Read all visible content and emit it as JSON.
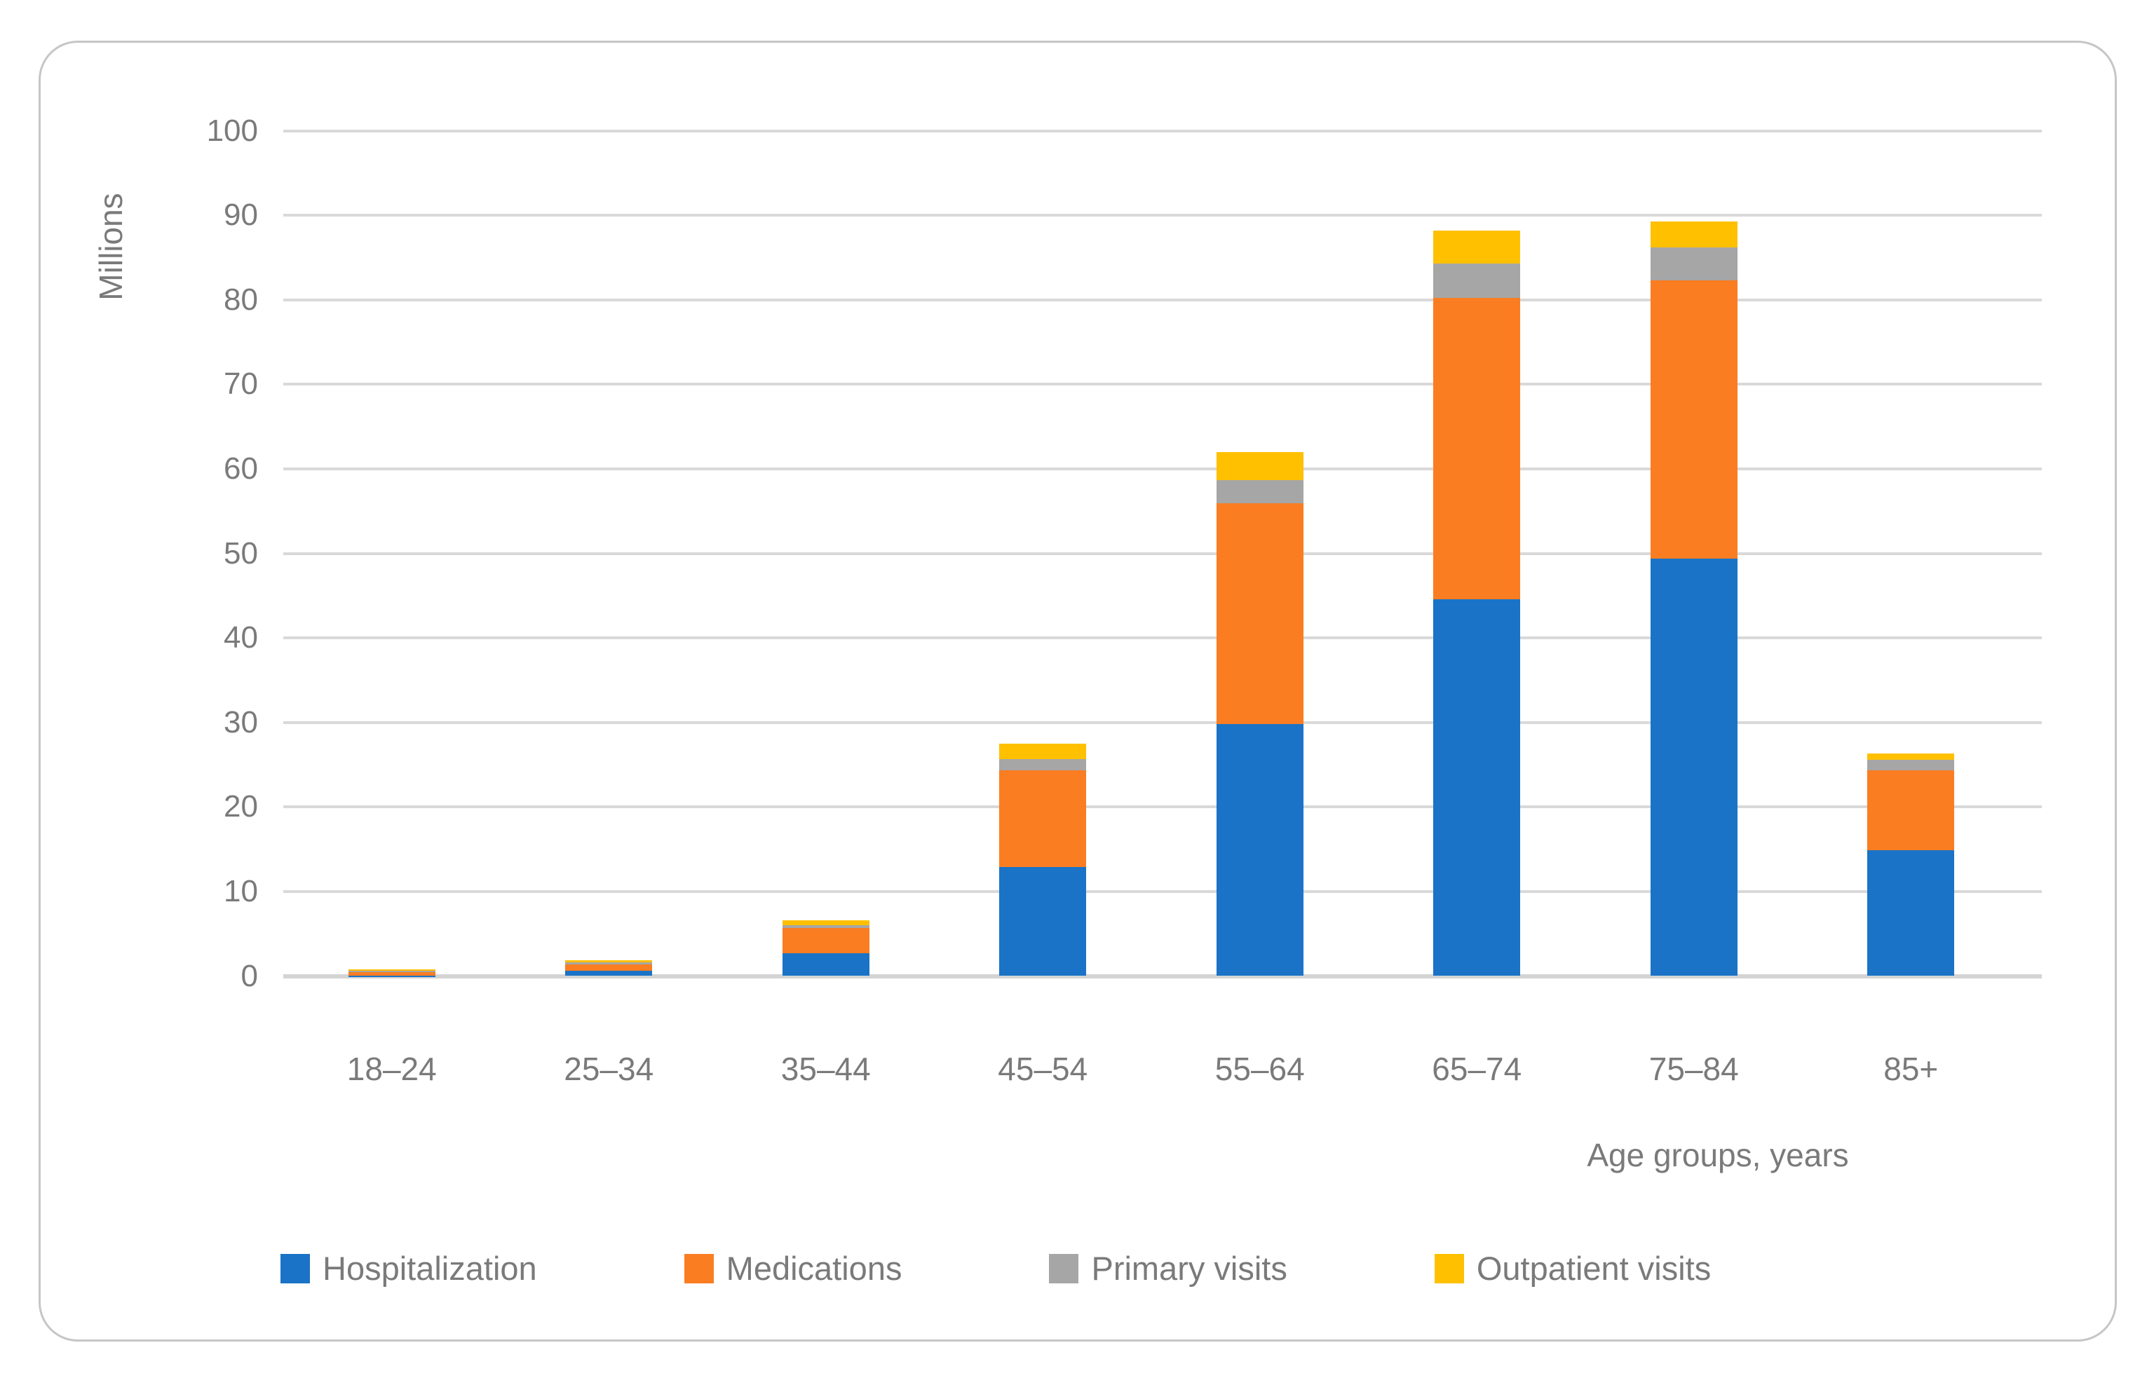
{
  "chart_data": {
    "type": "bar",
    "stacked": true,
    "title": "",
    "xlabel": "Age groups, years",
    "ylabel": "Millions",
    "categories": [
      "18–24",
      "25–34",
      "35–44",
      "45–54",
      "55–64",
      "65–74",
      "75–84",
      "85+"
    ],
    "series": [
      {
        "name": "Hospitalization",
        "color": "#1a73c6",
        "values": [
          0.05,
          0.6,
          2.7,
          12.9,
          29.8,
          44.6,
          49.4,
          14.9
        ]
      },
      {
        "name": "Medications",
        "color": "#fa7d22",
        "values": [
          0.55,
          0.8,
          3.0,
          11.4,
          26.1,
          35.6,
          32.9,
          9.4
        ]
      },
      {
        "name": "Primary visits",
        "color": "#a6a6a6",
        "values": [
          0.05,
          0.2,
          0.3,
          1.4,
          2.8,
          4.1,
          3.9,
          1.3
        ]
      },
      {
        "name": "Outpatient visits",
        "color": "#ffc000",
        "values": [
          0.15,
          0.3,
          0.6,
          1.8,
          3.3,
          3.9,
          3.1,
          0.7
        ]
      }
    ],
    "totals": [
      0.8,
      1.9,
      6.6,
      27.5,
      62.0,
      88.2,
      89.3,
      26.3
    ],
    "ylim": [
      0,
      100
    ],
    "ytick_step": 10,
    "ytick_labels": [
      "0",
      "10",
      "20",
      "30",
      "40",
      "50",
      "60",
      "70",
      "80",
      "90",
      "100"
    ],
    "grid": "horizontal",
    "legend_position": "bottom",
    "gridline_color": "#d9d9d9",
    "axis_text_color": "#7a7a7a"
  }
}
